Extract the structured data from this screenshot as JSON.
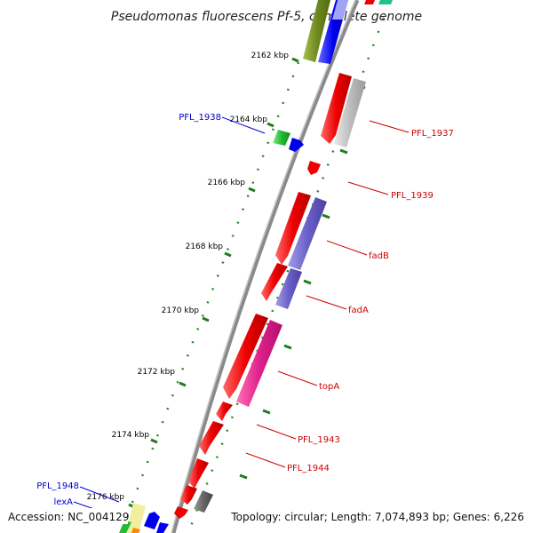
{
  "title": "Pseudomonas fluorescens Pf-5, complete genome",
  "footer": {
    "accession": "Accession: NC_004129",
    "topology": "Topology: circular; Length: 7,074,893 bp; Genes: 6,226"
  },
  "ticks": [
    "2162 kbp",
    "2164 kbp",
    "2166 kbp",
    "2168 kbp",
    "2170 kbp",
    "2172 kbp",
    "2174 kbp",
    "2176 kbp"
  ],
  "gene_labels_right": [
    "PFL_1937",
    "PFL_1939",
    "fadB",
    "fadA",
    "topA",
    "PFL_1943",
    "PFL_1944"
  ],
  "gene_labels_left": [
    "PFL_1938",
    "PFL_1948",
    "lexA"
  ],
  "colors": {
    "backbone": "#8a8a8a",
    "dots": "#2a8a2a",
    "gene_red": "#ee0000",
    "gene_purple": "#6a60c8",
    "gene_magenta": "#e0208a",
    "gene_gray": "#b8b8b8",
    "gene_olive": "#6f8a20",
    "gene_blue": "#0000ee",
    "gene_green": "#22bb33",
    "gene_yellow": "#f2eea0",
    "gene_teal": "#20c090"
  }
}
